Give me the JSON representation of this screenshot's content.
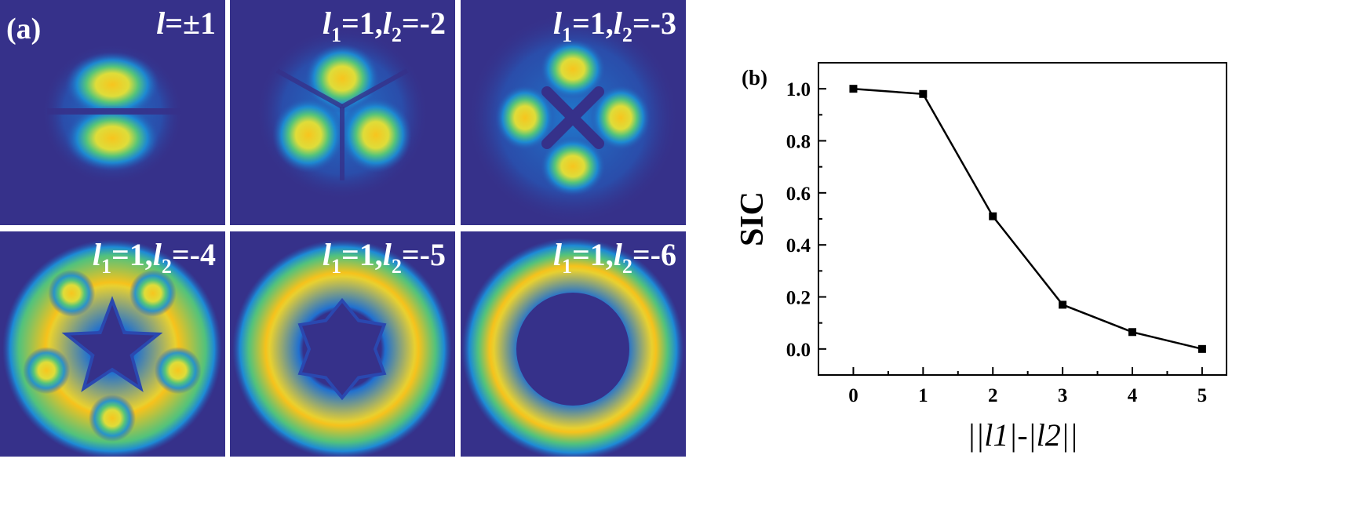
{
  "panel_a": {
    "tag": "(a)",
    "panels": [
      {
        "label_parts": [
          [
            "i",
            "l"
          ],
          [
            "u",
            "=±1"
          ]
        ],
        "pattern": "two-lobes"
      },
      {
        "label_parts": [
          [
            "i",
            "l"
          ],
          [
            "s",
            "1"
          ],
          [
            "u",
            "=1,"
          ],
          [
            "i",
            "l"
          ],
          [
            "s",
            "2"
          ],
          [
            "u",
            "=-2"
          ]
        ],
        "pattern": "three-lobes"
      },
      {
        "label_parts": [
          [
            "i",
            "l"
          ],
          [
            "s",
            "1"
          ],
          [
            "u",
            "=1,"
          ],
          [
            "i",
            "l"
          ],
          [
            "s",
            "2"
          ],
          [
            "u",
            "=-3"
          ]
        ],
        "pattern": "four-lobes"
      },
      {
        "label_parts": [
          [
            "i",
            "l"
          ],
          [
            "s",
            "1"
          ],
          [
            "u",
            "=1,"
          ],
          [
            "i",
            "l"
          ],
          [
            "s",
            "2"
          ],
          [
            "u",
            "=-4"
          ]
        ],
        "pattern": "five-point-star"
      },
      {
        "label_parts": [
          [
            "i",
            "l"
          ],
          [
            "s",
            "1"
          ],
          [
            "u",
            "=1,"
          ],
          [
            "i",
            "l"
          ],
          [
            "s",
            "2"
          ],
          [
            "u",
            "=-5"
          ]
        ],
        "pattern": "six-point-star-ring"
      },
      {
        "label_parts": [
          [
            "i",
            "l"
          ],
          [
            "s",
            "1"
          ],
          [
            "u",
            "=1,"
          ],
          [
            "i",
            "l"
          ],
          [
            "s",
            "2"
          ],
          [
            "u",
            "=-6"
          ]
        ],
        "pattern": "ring"
      }
    ],
    "colors": {
      "background": "#36318a",
      "peak": "#f6c21c"
    }
  },
  "chart_data": {
    "type": "line",
    "panel_tag": "(b)",
    "x": [
      0,
      1,
      2,
      3,
      4,
      5
    ],
    "series": [
      {
        "values": [
          1.0,
          0.98,
          0.51,
          0.17,
          0.065,
          0.0
        ]
      }
    ],
    "ylabel": "SIC",
    "xlabel": "||l1|-|l2||",
    "xticks": [
      "0",
      "1",
      "2",
      "3",
      "4",
      "5"
    ],
    "yticks": [
      "0.0",
      "0.2",
      "0.4",
      "0.6",
      "0.8",
      "1.0"
    ],
    "xlim": [
      -0.5,
      5.35
    ],
    "ylim": [
      -0.1,
      1.1
    ],
    "grid": false,
    "marker": "square",
    "color": "#000000"
  }
}
